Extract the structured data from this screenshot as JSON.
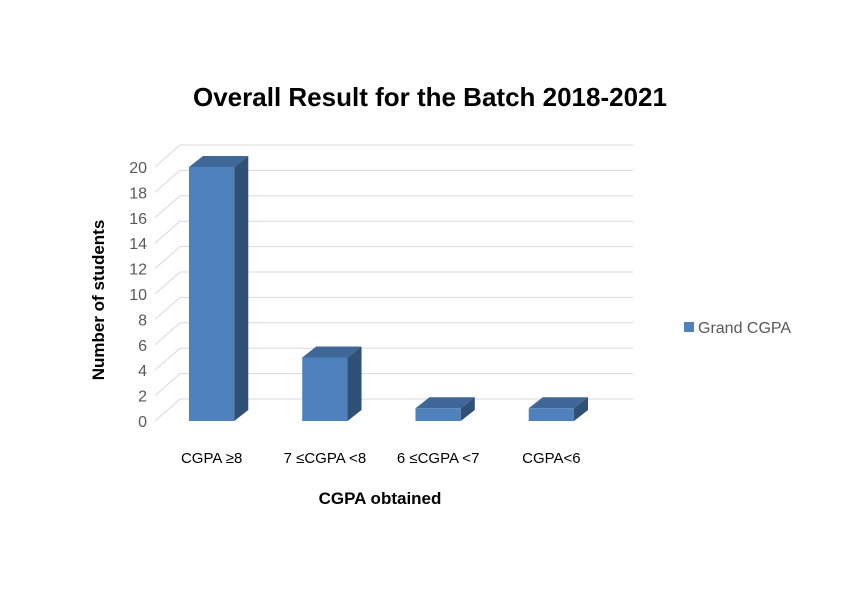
{
  "chart_data": {
    "type": "bar",
    "title": "Overall Result for the Batch 2018-2021",
    "xlabel": "CGPA obtained",
    "ylabel": "Number of students",
    "categories": [
      "CGPA ≥8",
      "7 ≤CGPA <8",
      "6 ≤CGPA <7",
      "CGPA<6"
    ],
    "series": [
      {
        "name": "Grand CGPA",
        "values": [
          20,
          5,
          1,
          1
        ],
        "color": "#4f81bd"
      }
    ],
    "ylim": [
      0,
      20
    ],
    "yticks": [
      0,
      2,
      4,
      6,
      8,
      10,
      12,
      14,
      16,
      18,
      20
    ],
    "grid": true,
    "legend_position": "right",
    "style": "3d-column"
  }
}
